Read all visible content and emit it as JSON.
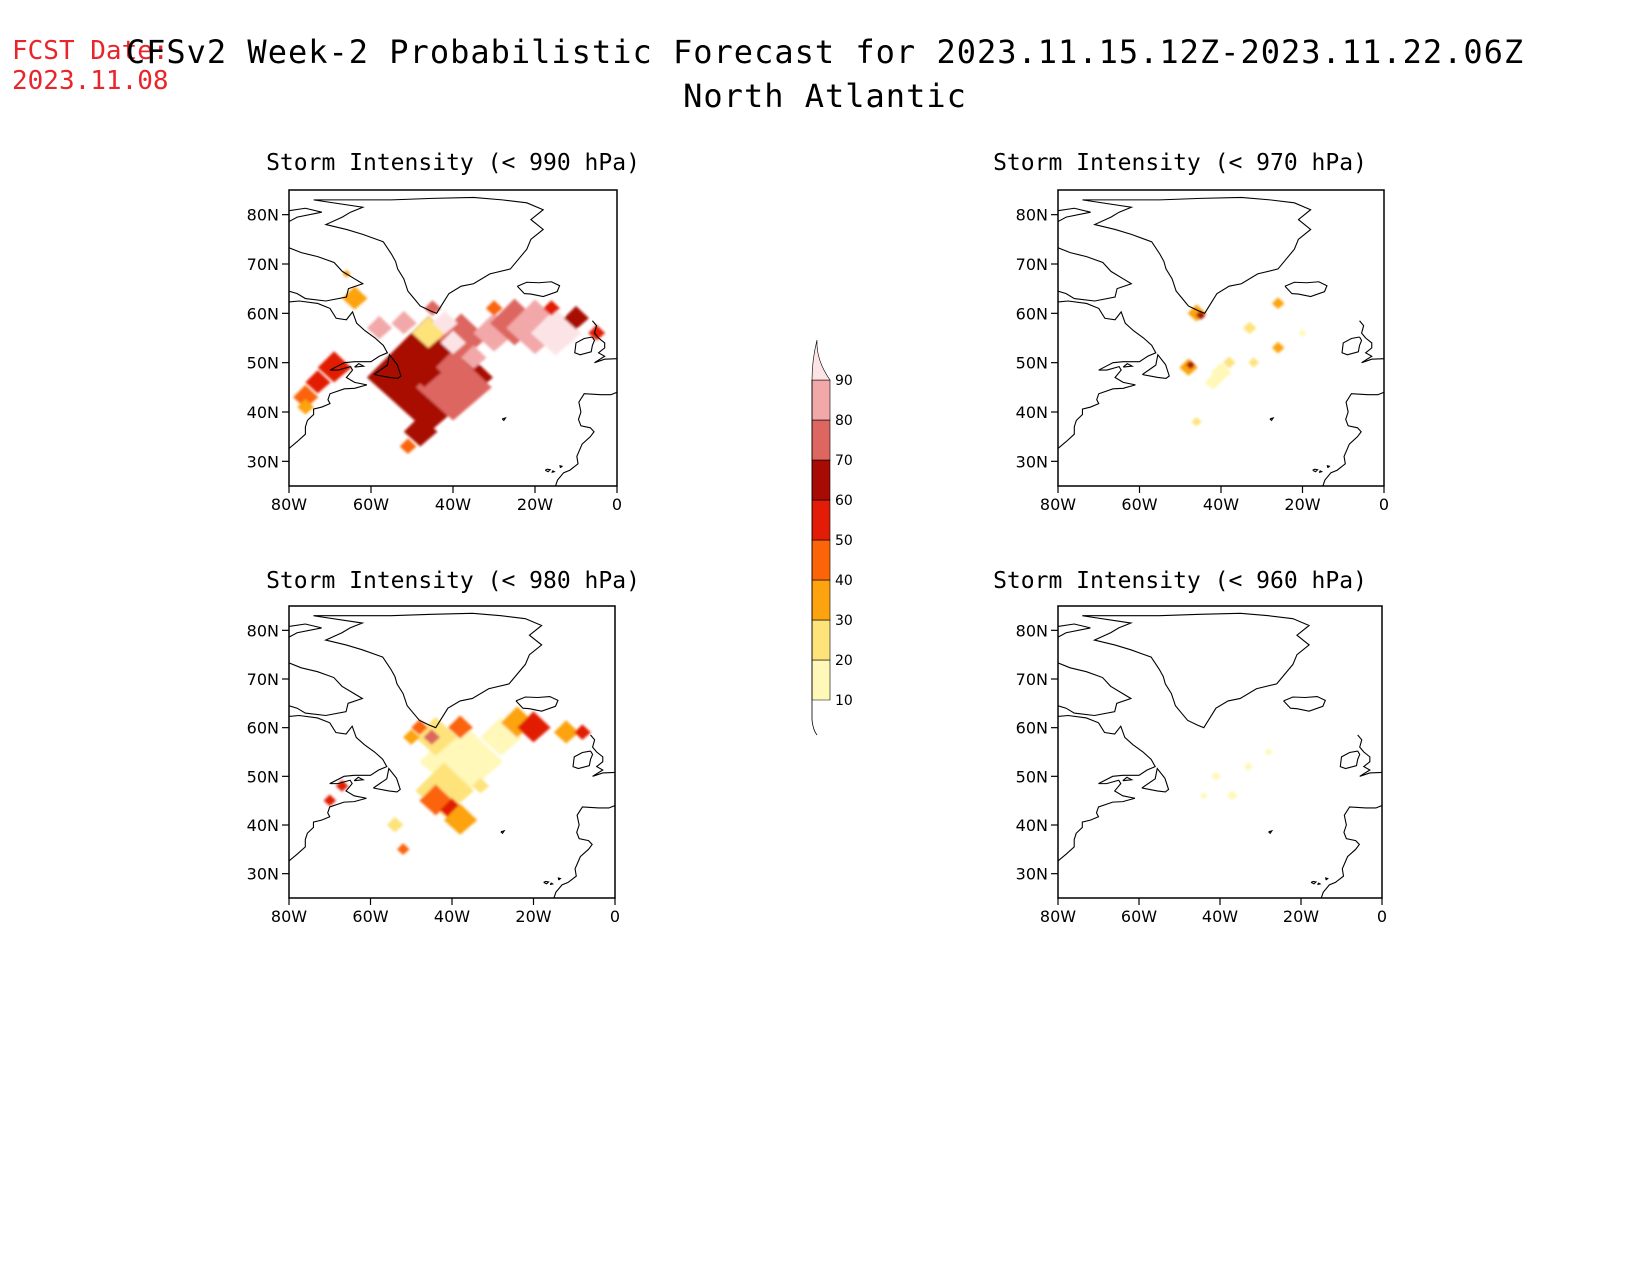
{
  "fcst_label": "FCST Date:",
  "fcst_date": "2023.11.08",
  "title": "CFSv2 Week-2 Probabilistic Forecast for 2023.11.15.12Z-2023.11.22.06Z",
  "subtitle": "North Atlantic",
  "lat_labels": [
    "80N",
    "70N",
    "60N",
    "50N",
    "40N",
    "30N"
  ],
  "lon_labels": [
    "80W",
    "60W",
    "40W",
    "20W",
    "0"
  ],
  "panels": [
    {
      "title": "Storm Intensity (< 990 hPa)"
    },
    {
      "title": "Storm Intensity (< 970 hPa)"
    },
    {
      "title": "Storm Intensity (< 980 hPa)"
    },
    {
      "title": "Storm Intensity (< 960 hPa)"
    }
  ],
  "colorbar": {
    "levels": [
      "10",
      "20",
      "30",
      "40",
      "50",
      "60",
      "70",
      "80",
      "90"
    ],
    "colors": [
      "#fff8b8",
      "#fde37a",
      "#fca30f",
      "#fb6407",
      "#e21c06",
      "#a80a04",
      "#de6660",
      "#f2a8a8",
      "#fce4e6"
    ]
  }
}
